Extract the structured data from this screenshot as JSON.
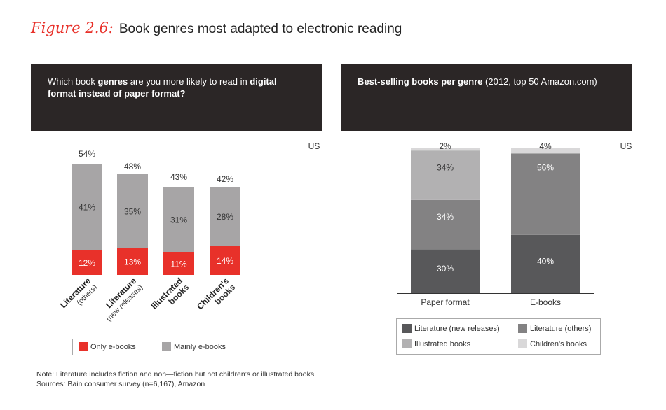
{
  "figure": {
    "number": "Figure 2.6:",
    "title": "Book genres most adapted to electronic reading"
  },
  "left_panel": {
    "question_parts": [
      {
        "text": "Which book ",
        "bold": false
      },
      {
        "text": "genres",
        "bold": true
      },
      {
        "text": " are you more likely to read in ",
        "bold": false
      },
      {
        "text": "digital format instead of paper format?",
        "bold": true
      }
    ],
    "region": "US",
    "legend": [
      {
        "label": "Only e-books",
        "color": "#e8312a"
      },
      {
        "label": "Mainly e-books",
        "color": "#a7a5a6"
      }
    ]
  },
  "right_panel": {
    "title_bold": "Best-selling books per genre",
    "title_rest": " (2012, top 50 Amazon.com)",
    "region": "US",
    "legend": [
      {
        "label": "Literature (new releases)",
        "color": "#58585a"
      },
      {
        "label": "Literature (others)",
        "color": "#838283"
      },
      {
        "label": "Illustrated books",
        "color": "#b2b1b2"
      },
      {
        "label": "Children's books",
        "color": "#d9d8d9"
      }
    ]
  },
  "chart_data": [
    {
      "type": "bar",
      "stacked": true,
      "categories": [
        {
          "line1": "Literature",
          "line2": "(others)"
        },
        {
          "line1": "Literature",
          "line2": "(new releases)"
        },
        {
          "line1": "Illustrated",
          "line2": "books"
        },
        {
          "line1": "Children's",
          "line2": "books"
        }
      ],
      "series": [
        {
          "name": "Only e-books",
          "color": "#e8312a",
          "values": [
            12,
            13,
            11,
            14
          ],
          "labels": [
            "12%",
            "13%",
            "11%",
            "14%"
          ]
        },
        {
          "name": "Mainly e-books",
          "color": "#a7a5a6",
          "values": [
            41,
            35,
            31,
            28
          ],
          "labels": [
            "41%",
            "35%",
            "31%",
            "28%"
          ]
        }
      ],
      "totals": [
        54,
        48,
        43,
        42
      ],
      "total_labels": [
        "54%",
        "48%",
        "43%",
        "42%"
      ],
      "ylim": [
        0,
        54
      ],
      "grid": false
    },
    {
      "type": "bar",
      "stacked": true,
      "categories": [
        "Paper format",
        "E-books"
      ],
      "series": [
        {
          "name": "Literature (new releases)",
          "color": "#58585a",
          "values": [
            30,
            40
          ],
          "labels": [
            "30%",
            "40%"
          ]
        },
        {
          "name": "Literature (others)",
          "color": "#838283",
          "values": [
            34,
            56
          ],
          "labels": [
            "34%",
            "56%"
          ]
        },
        {
          "name": "Illustrated books",
          "color": "#b2b1b2",
          "values": [
            34,
            0
          ],
          "labels": [
            "34%",
            ""
          ]
        },
        {
          "name": "Children's books",
          "color": "#d9d8d9",
          "values": [
            2,
            4
          ],
          "labels": [
            "2%",
            "4%"
          ]
        }
      ],
      "ylim": [
        0,
        100
      ],
      "grid": false
    }
  ],
  "notes": {
    "line1": "Note: Literature includes fiction and non—fiction but not children’s or illustrated books",
    "line2": "Sources: Bain consumer survey (n=6,167), Amazon"
  }
}
